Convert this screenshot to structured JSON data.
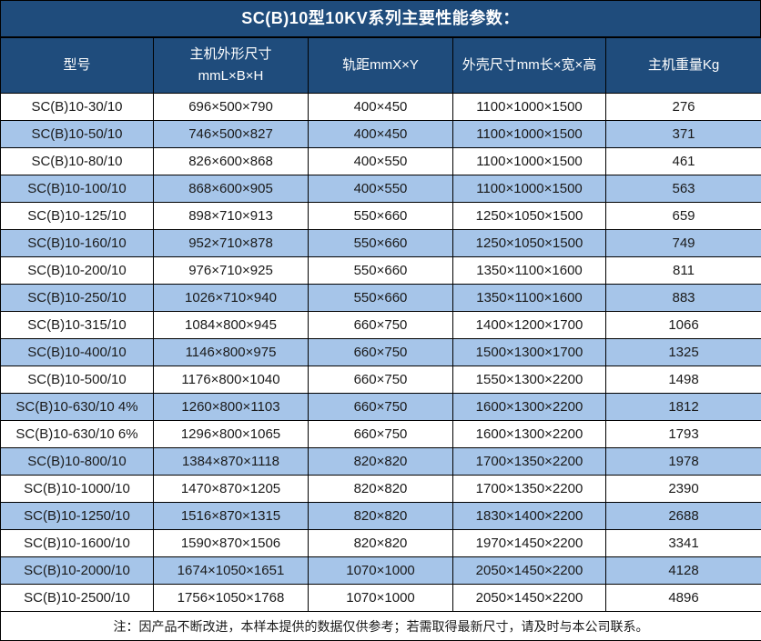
{
  "title": "SC(B)10型10KV系列主要性能参数：",
  "table": {
    "headers": [
      "型号",
      "主机外形尺寸\nmmL×B×H",
      "轨距mmX×Y",
      "外壳尺寸mm长×宽×高",
      "主机重量Kg"
    ],
    "rows": [
      [
        "SC(B)10-30/10",
        "696×500×790",
        "400×450",
        "1100×1000×1500",
        "276"
      ],
      [
        "SC(B)10-50/10",
        "746×500×827",
        "400×450",
        "1100×1000×1500",
        "371"
      ],
      [
        "SC(B)10-80/10",
        "826×600×868",
        "400×550",
        "1100×1000×1500",
        "461"
      ],
      [
        "SC(B)10-100/10",
        "868×600×905",
        "400×550",
        "1100×1000×1500",
        "563"
      ],
      [
        "SC(B)10-125/10",
        "898×710×913",
        "550×660",
        "1250×1050×1500",
        "659"
      ],
      [
        "SC(B)10-160/10",
        "952×710×878",
        "550×660",
        "1250×1050×1500",
        "749"
      ],
      [
        "SC(B)10-200/10",
        "976×710×925",
        "550×660",
        "1350×1100×1600",
        "811"
      ],
      [
        "SC(B)10-250/10",
        "1026×710×940",
        "550×660",
        "1350×1100×1600",
        "883"
      ],
      [
        "SC(B)10-315/10",
        "1084×800×945",
        "660×750",
        "1400×1200×1700",
        "1066"
      ],
      [
        "SC(B)10-400/10",
        "1146×800×975",
        "660×750",
        "1500×1300×1700",
        "1325"
      ],
      [
        "SC(B)10-500/10",
        "1176×800×1040",
        "660×750",
        "1550×1300×2200",
        "1498"
      ],
      [
        "SC(B)10-630/10 4%",
        "1260×800×1103",
        "660×750",
        "1600×1300×2200",
        "1812"
      ],
      [
        "SC(B)10-630/10 6%",
        "1296×800×1065",
        "660×750",
        "1600×1300×2200",
        "1793"
      ],
      [
        "SC(B)10-800/10",
        "1384×870×1118",
        "820×820",
        "1700×1350×2200",
        "1978"
      ],
      [
        "SC(B)10-1000/10",
        "1470×870×1205",
        "820×820",
        "1700×1350×2200",
        "2390"
      ],
      [
        "SC(B)10-1250/10",
        "1516×870×1315",
        "820×820",
        "1830×1400×2200",
        "2688"
      ],
      [
        "SC(B)10-1600/10",
        "1590×870×1506",
        "820×820",
        "1970×1450×2200",
        "3341"
      ],
      [
        "SC(B)10-2000/10",
        "1674×1050×1651",
        "1070×1000",
        "2050×1450×2200",
        "4128"
      ],
      [
        "SC(B)10-2500/10",
        "1756×1050×1768",
        "1070×1000",
        "2050×1450×2200",
        "4896"
      ]
    ]
  },
  "note": "注：因产品不断改进，本样本提供的数据仅供参考；若需取得最新尺寸，请及时与本公司联系。",
  "colors": {
    "header_bg": "#1f4c7c",
    "row_alt_bg": "#a6c5e9",
    "row_bg": "#ffffff",
    "border": "#000000",
    "header_text": "#ffffff",
    "body_text": "#1a1a1a"
  }
}
